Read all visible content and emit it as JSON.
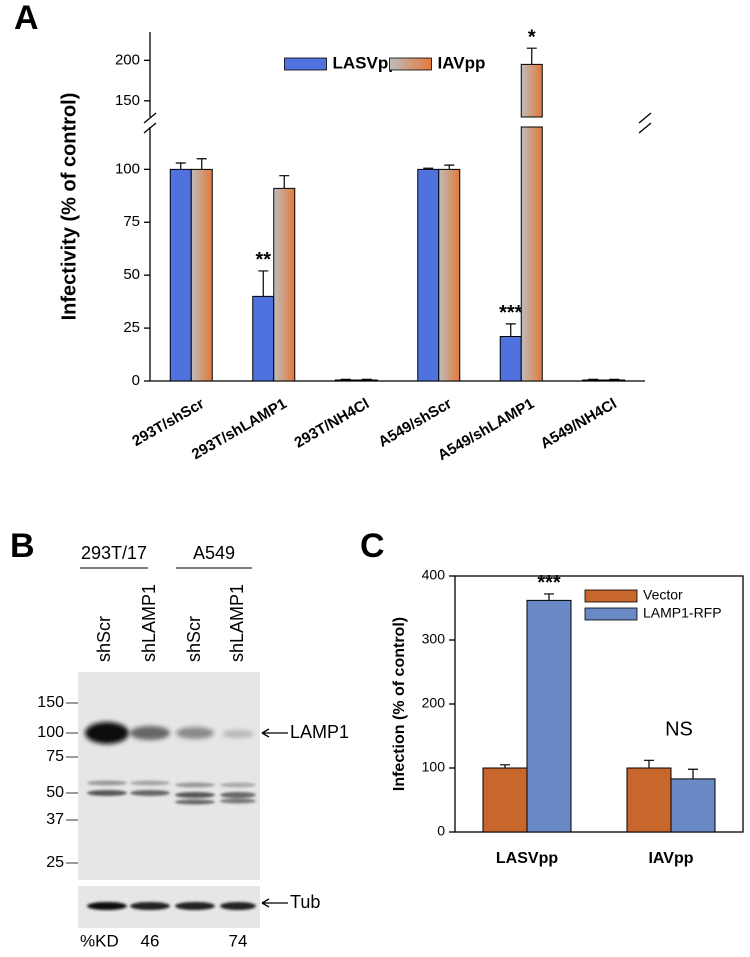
{
  "panel_labels": [
    "A",
    "B",
    "C"
  ],
  "chart_data": [
    {
      "type": "bar",
      "y_label": "Infectivity (% of control)",
      "categories": [
        "293T/shScr",
        "293T/shLAMP1",
        "293T/NH4Cl",
        "A549/shScr",
        "A549/shLAMP1",
        "A549/NH4Cl"
      ],
      "series": [
        {
          "name": "LASVpp",
          "color": "#4f72de",
          "fill_style": "solid",
          "values": [
            100,
            40,
            0.5,
            100,
            21,
            0.5
          ],
          "errors": [
            3,
            12,
            0.3,
            0.5,
            6,
            0.3
          ],
          "significance": [
            null,
            "**",
            null,
            null,
            "***",
            null
          ]
        },
        {
          "name": "IAVpp",
          "color": "#e2793a",
          "fill_style": "gradient",
          "values": [
            100,
            91,
            0.5,
            100,
            195,
            0.5
          ],
          "errors": [
            5,
            6,
            0.3,
            2,
            20,
            0.3
          ],
          "significance": [
            null,
            null,
            null,
            null,
            "*",
            null
          ]
        }
      ],
      "ylim": [
        0,
        235
      ],
      "ybreak": [
        120,
        130
      ],
      "yticks": [
        0,
        25,
        50,
        75,
        100,
        150,
        200
      ],
      "legend": "upper center"
    },
    {
      "type": "bar",
      "y_label": "Infection (% of control)",
      "categories": [
        "LASVpp",
        "IAVpp"
      ],
      "series": [
        {
          "name": "Vector",
          "color": "#c8672b",
          "fill_style": "solid",
          "values": [
            100,
            100
          ],
          "errors": [
            5,
            12
          ],
          "significance": [
            null,
            null
          ]
        },
        {
          "name": "LAMP1-RFP",
          "color": "#6a8ac6",
          "fill_style": "solid",
          "values": [
            362,
            83
          ],
          "errors": [
            10,
            15
          ],
          "significance": [
            "***",
            null
          ]
        }
      ],
      "group_labels": [
        null,
        "NS"
      ],
      "ylim": [
        0,
        400
      ],
      "yticks": [
        0,
        100,
        200,
        300,
        400
      ],
      "legend": "upper right",
      "frame": true
    }
  ],
  "blot": {
    "groups": [
      "293T/17",
      "A549"
    ],
    "lanes": [
      "shScr",
      "shLAMP1",
      "shScr",
      "shLAMP1"
    ],
    "markers": [
      150,
      100,
      75,
      50,
      37,
      25
    ],
    "bands": [
      "LAMP1",
      "Tub"
    ],
    "kd_label": "%KD",
    "kd_values": [
      null,
      "46",
      null,
      "74"
    ]
  }
}
